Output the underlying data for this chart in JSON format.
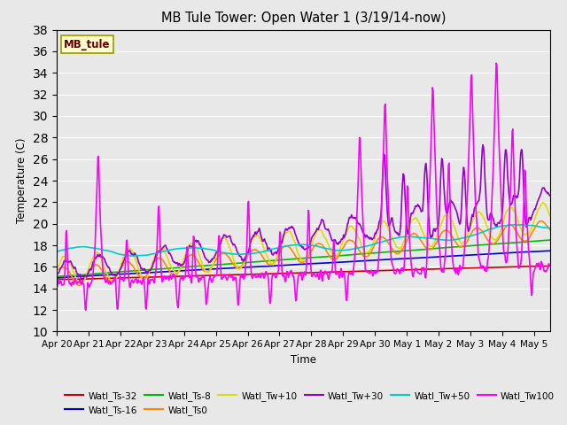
{
  "title": "MB Tule Tower: Open Water 1 (3/19/14-now)",
  "xlabel": "Time",
  "ylabel": "Temperature (C)",
  "ylim": [
    10,
    38
  ],
  "yticks": [
    10,
    12,
    14,
    16,
    18,
    20,
    22,
    24,
    26,
    28,
    30,
    32,
    34,
    36,
    38
  ],
  "bg_color": "#e8e8e8",
  "fig_color": "#e8e8e8",
  "watermark_text": "MB_tule",
  "watermark_bg": "#ffffcc",
  "watermark_border": "#999900",
  "series_order": [
    "Watl_Ts-32",
    "Watl_Ts-16",
    "Watl_Ts-8",
    "Watl_Ts0",
    "Watl_Tw+10",
    "Watl_Tw+30",
    "Watl_Tw+50",
    "Watl_Tw100"
  ],
  "series": {
    "Watl_Ts-32": {
      "color": "#cc0000",
      "lw": 1.2
    },
    "Watl_Ts-16": {
      "color": "#0000cc",
      "lw": 1.2
    },
    "Watl_Ts-8": {
      "color": "#00bb00",
      "lw": 1.2
    },
    "Watl_Ts0": {
      "color": "#ff8800",
      "lw": 1.2
    },
    "Watl_Tw+10": {
      "color": "#dddd00",
      "lw": 1.2
    },
    "Watl_Tw+30": {
      "color": "#9900cc",
      "lw": 1.2
    },
    "Watl_Tw+50": {
      "color": "#00cccc",
      "lw": 1.2
    },
    "Watl_Tw100": {
      "color": "#ff00ff",
      "lw": 1.2
    }
  },
  "xtick_labels": [
    "Apr 20",
    "Apr 21",
    "Apr 22",
    "Apr 23",
    "Apr 24",
    "Apr 25",
    "Apr 26",
    "Apr 27",
    "Apr 28",
    "Apr 29",
    "Apr 30",
    "May 1",
    "May 2",
    "May 3",
    "May 4",
    "May 5"
  ],
  "n_days": 15.5
}
